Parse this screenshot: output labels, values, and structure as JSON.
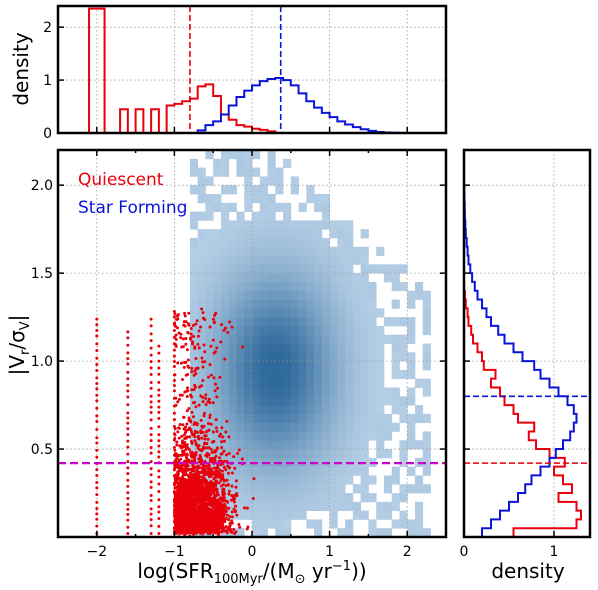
{
  "colors": {
    "quiescent": "#e8000b",
    "star_forming": "#0a14d8",
    "threshold": "#c800c8",
    "hist2d_light": "#c6dbef",
    "hist2d_dark": "#2f6a9c"
  },
  "chart_data": [
    {
      "id": "main",
      "type": "scatter",
      "xlabel": "log(SFR_100Myr/(M_⊙ yr^-1))",
      "ylabel": "|V_r/σ_V|",
      "xlim": [
        -2.5,
        2.5
      ],
      "ylim": [
        0.0,
        2.2
      ],
      "xticks": [
        "-2",
        "-1",
        "0",
        "1",
        "2"
      ],
      "yticks": [
        "0.5",
        "1.0",
        "1.5",
        "2.0"
      ],
      "grid": true,
      "legend": {
        "placement": "top-left",
        "entries": [
          "Quiescent",
          "Star Forming"
        ]
      },
      "series": [
        {
          "name": "Quiescent",
          "kind": "points",
          "color": "#e8000b"
        },
        {
          "name": "Star Forming",
          "kind": "2d-histogram",
          "peak": [
            0.3,
            0.95
          ]
        }
      ],
      "reference_lines": [
        {
          "axis": "y",
          "value": 0.42,
          "style": "dashed",
          "color": "#c800c8"
        }
      ]
    },
    {
      "id": "top",
      "type": "line",
      "ylabel": "density",
      "xlim": [
        -2.5,
        2.5
      ],
      "ylim": [
        0,
        2.4
      ],
      "yticks": [
        "0",
        "1",
        "2"
      ],
      "grid": true,
      "series": [
        {
          "name": "Quiescent",
          "edges": [
            -2.1,
            -1.9,
            -1.7,
            -1.6,
            -1.5,
            -1.4,
            -1.3,
            -1.2,
            -1.1,
            -1.0,
            -0.9,
            -0.8,
            -0.7,
            -0.6,
            -0.5,
            -0.4,
            -0.3,
            -0.2,
            -0.1,
            0.0,
            0.1,
            0.2,
            0.3,
            0.5
          ],
          "values": [
            2.35,
            0,
            0.45,
            0,
            0.45,
            0,
            0.45,
            0,
            0.52,
            0.55,
            0.6,
            0.65,
            0.88,
            0.92,
            0.7,
            0.35,
            0.25,
            0.15,
            0.12,
            0.08,
            0.06,
            0.03,
            0.0
          ]
        },
        {
          "name": "Star Forming",
          "edges": [
            -0.7,
            -0.6,
            -0.5,
            -0.4,
            -0.3,
            -0.2,
            -0.1,
            0.0,
            0.1,
            0.2,
            0.3,
            0.4,
            0.5,
            0.6,
            0.7,
            0.8,
            0.9,
            1.0,
            1.1,
            1.2,
            1.3,
            1.4,
            1.5,
            1.6,
            1.7,
            1.8,
            1.9,
            2.0
          ],
          "values": [
            0.05,
            0.15,
            0.22,
            0.35,
            0.52,
            0.68,
            0.8,
            0.9,
            0.98,
            1.02,
            1.04,
            1.0,
            0.9,
            0.75,
            0.6,
            0.48,
            0.38,
            0.3,
            0.22,
            0.16,
            0.11,
            0.07,
            0.04,
            0.02,
            0.01,
            0.005,
            0.0
          ]
        }
      ],
      "medians": [
        {
          "series": "Quiescent",
          "x": -0.8
        },
        {
          "series": "Star Forming",
          "x": 0.37
        }
      ]
    },
    {
      "id": "right",
      "type": "line",
      "xlabel": "density",
      "xlim": [
        0,
        1.4
      ],
      "ylim": [
        0.0,
        2.2
      ],
      "xticks": [
        "0",
        "1"
      ],
      "grid": true,
      "series": [
        {
          "name": "Quiescent",
          "edges": [
            0.0,
            0.05,
            0.1,
            0.15,
            0.2,
            0.25,
            0.3,
            0.35,
            0.4,
            0.45,
            0.5,
            0.55,
            0.6,
            0.65,
            0.7,
            0.75,
            0.8,
            0.85,
            0.9,
            0.95,
            1.0,
            1.05,
            1.1,
            1.15,
            1.2,
            1.25,
            1.3,
            1.35,
            1.4
          ],
          "values": [
            0.55,
            1.25,
            1.3,
            1.25,
            1.05,
            1.2,
            1.1,
            1.0,
            1.12,
            0.95,
            0.8,
            0.72,
            0.78,
            0.6,
            0.55,
            0.45,
            0.4,
            0.3,
            0.35,
            0.22,
            0.2,
            0.15,
            0.1,
            0.08,
            0.05,
            0.04,
            0.02,
            0.01
          ]
        },
        {
          "name": "Star Forming",
          "edges": [
            0.0,
            0.05,
            0.1,
            0.15,
            0.2,
            0.25,
            0.3,
            0.35,
            0.4,
            0.45,
            0.5,
            0.55,
            0.6,
            0.65,
            0.7,
            0.75,
            0.8,
            0.85,
            0.9,
            0.95,
            1.0,
            1.05,
            1.1,
            1.15,
            1.2,
            1.25,
            1.3,
            1.35,
            1.4,
            1.45,
            1.5,
            1.55,
            1.6,
            1.65,
            1.7,
            1.75,
            1.8,
            1.85,
            1.9,
            1.95,
            2.0
          ],
          "values": [
            0.2,
            0.3,
            0.4,
            0.5,
            0.6,
            0.68,
            0.75,
            0.85,
            0.95,
            1.02,
            1.1,
            1.18,
            1.22,
            1.25,
            1.22,
            1.15,
            1.05,
            0.95,
            0.85,
            0.78,
            0.65,
            0.55,
            0.45,
            0.38,
            0.3,
            0.25,
            0.2,
            0.15,
            0.12,
            0.09,
            0.07,
            0.05,
            0.04,
            0.03,
            0.02,
            0.015,
            0.01,
            0.008,
            0.005,
            0.003
          ]
        }
      ],
      "medians": [
        {
          "series": "Quiescent",
          "y": 0.42
        },
        {
          "series": "Star Forming",
          "y": 0.8
        }
      ]
    }
  ]
}
